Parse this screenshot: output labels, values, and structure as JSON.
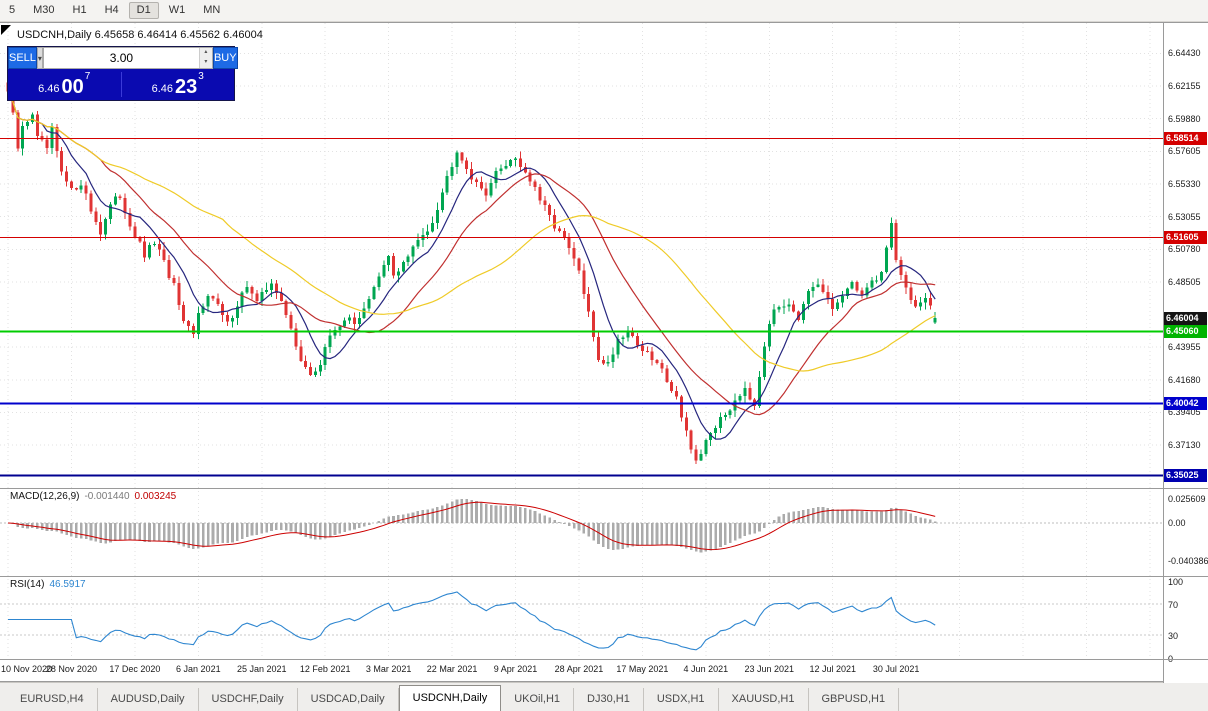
{
  "timeframe_bar": {
    "buttons": [
      "5",
      "M30",
      "H1",
      "H4",
      "D1",
      "W1",
      "MN"
    ],
    "active": "D1"
  },
  "chart_header": {
    "title": "USDCNH,Daily 6.45658 6.46414 6.45562 6.46004"
  },
  "trade_panel": {
    "sell_label": "SELL",
    "buy_label": "BUY",
    "volume": "3.00",
    "sell_price": {
      "small": "6.46",
      "big": "00",
      "sup": "7"
    },
    "buy_price": {
      "small": "6.46",
      "big": "23",
      "sup": "3"
    }
  },
  "price_axis": {
    "ticks": [
      "6.64430",
      "6.62155",
      "6.59880",
      "6.57605",
      "6.55330",
      "6.53055",
      "6.50780",
      "6.48505",
      "6.43955",
      "6.41680",
      "6.39405",
      "6.37130"
    ],
    "badges": [
      {
        "text": "6.58514",
        "price": 6.58514,
        "color": "#d40000"
      },
      {
        "text": "6.51605",
        "price": 6.51605,
        "color": "#d40000"
      },
      {
        "text": "6.46004",
        "price": 6.46004,
        "color": "#141414"
      },
      {
        "text": "6.45060",
        "price": 6.4506,
        "color": "#00b400"
      },
      {
        "text": "6.40042",
        "price": 6.40042,
        "color": "#0000cc"
      },
      {
        "text": "6.35025",
        "price": 6.35025,
        "color": "#0000b0"
      }
    ]
  },
  "hlines": [
    {
      "price": 6.58514,
      "color": "#d40000",
      "width": 1
    },
    {
      "price": 6.51605,
      "color": "#d40000",
      "width": 1
    },
    {
      "price": 6.4506,
      "color": "#00cc00",
      "width": 2
    },
    {
      "price": 6.40042,
      "color": "#0000cc",
      "width": 2
    },
    {
      "price": 6.35025,
      "color": "#000090",
      "width": 2
    }
  ],
  "macd_panel": {
    "name": "MACD(12,26,9)",
    "value_main": "-0.001440",
    "value_signal": "0.003245",
    "axis": [
      "0.025609",
      "0.00",
      "-0.040386"
    ],
    "hist_color": "#ababab",
    "signal_color": "#cc0000"
  },
  "rsi_panel": {
    "name": "RSI(14)",
    "value": "46.5917",
    "axis": [
      "100",
      "70",
      "30",
      "0"
    ],
    "levels": [
      70,
      30
    ],
    "line_color": "#2e86d0"
  },
  "date_axis": [
    "10 Nov 2020",
    "28 Nov 2020",
    "17 Dec 2020",
    "6 Jan 2021",
    "25 Jan 2021",
    "12 Feb 2021",
    "3 Mar 2021",
    "22 Mar 2021",
    "9 Apr 2021",
    "28 Apr 2021",
    "17 May 2021",
    "4 Jun 2021",
    "23 Jun 2021",
    "12 Jul 2021",
    "30 Jul 2021"
  ],
  "tab_bar": {
    "tabs": [
      "EURUSD,H4",
      "AUDUSD,Daily",
      "USDCHF,Daily",
      "USDCAD,Daily",
      "USDCNH,Daily",
      "UKOil,H1",
      "DJ30,H1",
      "USDX,H1",
      "XAUUSD,H1",
      "GBPUSD,H1"
    ],
    "active": "USDCNH,Daily"
  },
  "chart_data": {
    "type": "candlestick",
    "symbol": "USDCNH",
    "period": "Daily",
    "candles_total": 191,
    "candles_per_label": 13,
    "price_range": [
      6.3414,
      6.6655
    ],
    "up_color": "#00a651",
    "down_color": "#e03434",
    "grid_color": "#e2e2e2",
    "moving_averages": [
      {
        "period": 8,
        "color": "#26267e"
      },
      {
        "period": 20,
        "color": "#c03030"
      },
      {
        "period": 45,
        "color": "#efcb28"
      }
    ],
    "last_candle": {
      "o": 6.45658,
      "h": 6.46414,
      "l": 6.45562,
      "c": 6.46004
    },
    "close_anchors": [
      [
        0,
        6.618
      ],
      [
        1,
        6.6
      ],
      [
        2,
        6.578
      ],
      [
        3,
        6.592
      ],
      [
        5,
        6.603
      ],
      [
        6,
        6.585
      ],
      [
        8,
        6.578
      ],
      [
        9,
        6.59
      ],
      [
        11,
        6.56
      ],
      [
        13,
        6.548
      ],
      [
        15,
        6.555
      ],
      [
        17,
        6.535
      ],
      [
        19,
        6.52
      ],
      [
        21,
        6.538
      ],
      [
        23,
        6.545
      ],
      [
        25,
        6.525
      ],
      [
        28,
        6.503
      ],
      [
        30,
        6.513
      ],
      [
        32,
        6.498
      ],
      [
        34,
        6.482
      ],
      [
        36,
        6.455
      ],
      [
        38,
        6.448
      ],
      [
        39,
        6.462
      ],
      [
        41,
        6.478
      ],
      [
        43,
        6.468
      ],
      [
        45,
        6.455
      ],
      [
        47,
        6.47
      ],
      [
        49,
        6.483
      ],
      [
        51,
        6.47
      ],
      [
        54,
        6.486
      ],
      [
        56,
        6.47
      ],
      [
        58,
        6.452
      ],
      [
        60,
        6.432
      ],
      [
        62,
        6.418
      ],
      [
        64,
        6.428
      ],
      [
        65,
        6.44
      ],
      [
        67,
        6.452
      ],
      [
        69,
        6.46
      ],
      [
        71,
        6.455
      ],
      [
        73,
        6.468
      ],
      [
        75,
        6.48
      ],
      [
        77,
        6.495
      ],
      [
        78,
        6.502
      ],
      [
        79,
        6.49
      ],
      [
        81,
        6.498
      ],
      [
        83,
        6.508
      ],
      [
        85,
        6.518
      ],
      [
        87,
        6.528
      ],
      [
        89,
        6.548
      ],
      [
        91,
        6.568
      ],
      [
        92,
        6.578
      ],
      [
        94,
        6.565
      ],
      [
        96,
        6.552
      ],
      [
        98,
        6.548
      ],
      [
        100,
        6.56
      ],
      [
        102,
        6.568
      ],
      [
        104,
        6.572
      ],
      [
        107,
        6.556
      ],
      [
        109,
        6.542
      ],
      [
        111,
        6.53
      ],
      [
        113,
        6.52
      ],
      [
        115,
        6.508
      ],
      [
        117,
        6.492
      ],
      [
        119,
        6.462
      ],
      [
        121,
        6.432
      ],
      [
        123,
        6.428
      ],
      [
        125,
        6.445
      ],
      [
        127,
        6.452
      ],
      [
        129,
        6.442
      ],
      [
        131,
        6.434
      ],
      [
        133,
        6.428
      ],
      [
        135,
        6.418
      ],
      [
        137,
        6.404
      ],
      [
        139,
        6.382
      ],
      [
        140,
        6.368
      ],
      [
        141,
        6.358
      ],
      [
        142,
        6.362
      ],
      [
        143,
        6.375
      ],
      [
        145,
        6.385
      ],
      [
        147,
        6.392
      ],
      [
        149,
        6.403
      ],
      [
        151,
        6.412
      ],
      [
        153,
        6.4
      ],
      [
        155,
        6.442
      ],
      [
        156,
        6.458
      ],
      [
        158,
        6.468
      ],
      [
        160,
        6.472
      ],
      [
        162,
        6.46
      ],
      [
        164,
        6.476
      ],
      [
        166,
        6.482
      ],
      [
        168,
        6.472
      ],
      [
        169,
        6.466
      ],
      [
        171,
        6.476
      ],
      [
        173,
        6.482
      ],
      [
        175,
        6.478
      ],
      [
        177,
        6.484
      ],
      [
        179,
        6.492
      ],
      [
        181,
        6.526
      ],
      [
        182,
        6.502
      ],
      [
        184,
        6.48
      ],
      [
        186,
        6.468
      ],
      [
        188,
        6.472
      ],
      [
        190,
        6.46
      ]
    ]
  }
}
